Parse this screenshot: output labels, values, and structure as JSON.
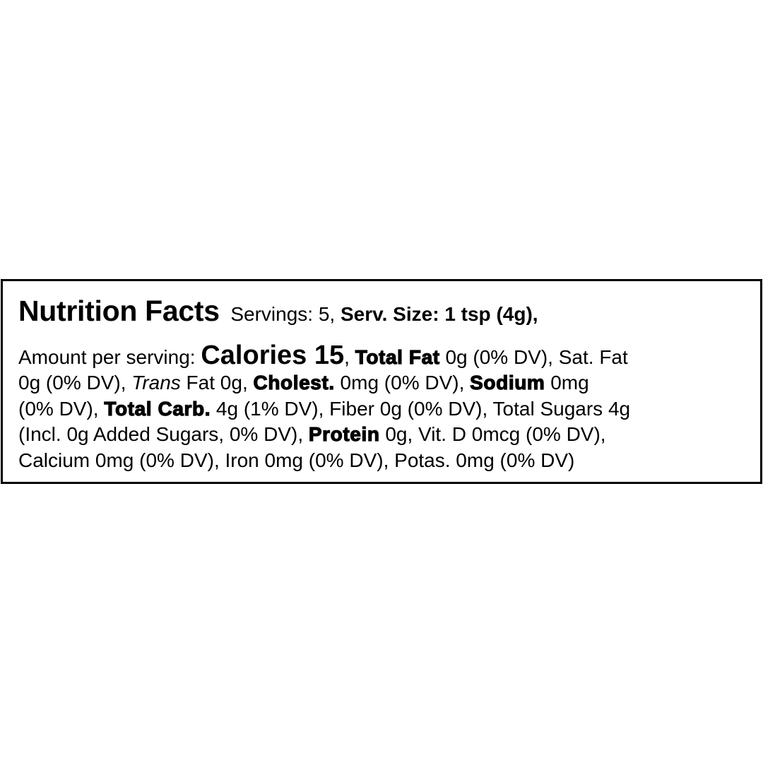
{
  "label": {
    "lines": [
      [
        {
          "text": "Nutrition Facts",
          "style": "title",
          "name": "nutrition-facts-heading"
        },
        {
          "text": "  Servings: 5, ",
          "style": "regular",
          "name": "servings-text"
        },
        {
          "text": "Serv. Size: 1 tsp (4g),",
          "style": "bold",
          "name": "serving-size-text"
        }
      ],
      [
        {
          "text": "Amount per serving: ",
          "style": "regular",
          "name": "amount-per-serving-text"
        },
        {
          "text": "Calories 15",
          "style": "cal",
          "name": "calories-text"
        },
        {
          "text": ", ",
          "style": "regular",
          "name": "separator"
        },
        {
          "text": "Total Fat",
          "style": "heavy",
          "name": "total-fat-label"
        },
        {
          "text": " 0g (0% DV), Sat. Fat",
          "style": "regular",
          "name": "total-fat-value"
        }
      ],
      [
        {
          "text": "0g (0% DV), ",
          "style": "regular",
          "name": "sat-fat-value"
        },
        {
          "text": "Trans",
          "style": "italic",
          "name": "trans-label"
        },
        {
          "text": " Fat 0g, ",
          "style": "regular",
          "name": "trans-fat-value"
        },
        {
          "text": "Cholest.",
          "style": "heavy",
          "name": "cholesterol-label"
        },
        {
          "text": " 0mg (0% DV), ",
          "style": "regular",
          "name": "cholesterol-value"
        },
        {
          "text": "Sodium",
          "style": "heavy",
          "name": "sodium-label"
        },
        {
          "text": " 0mg",
          "style": "regular",
          "name": "sodium-value"
        }
      ],
      [
        {
          "text": "(0% DV), ",
          "style": "regular",
          "name": "sodium-dv"
        },
        {
          "text": "Total Carb.",
          "style": "heavy",
          "name": "total-carb-label"
        },
        {
          "text": " 4g (1% DV), Fiber 0g (0% DV), Total Sugars 4g",
          "style": "regular",
          "name": "carb-fiber-sugars-value"
        }
      ],
      [
        {
          "text": "(Incl. 0g Added Sugars, 0% DV), ",
          "style": "regular",
          "name": "added-sugars-value"
        },
        {
          "text": "Protein",
          "style": "heavy",
          "name": "protein-label"
        },
        {
          "text": " 0g, Vit. D 0mcg (0% DV),",
          "style": "regular",
          "name": "protein-vitd-value"
        }
      ],
      [
        {
          "text": "Calcium 0mg (0% DV), Iron 0mg (0% DV), Potas. 0mg (0% DV)",
          "style": "regular",
          "name": "minerals-value"
        }
      ]
    ]
  }
}
